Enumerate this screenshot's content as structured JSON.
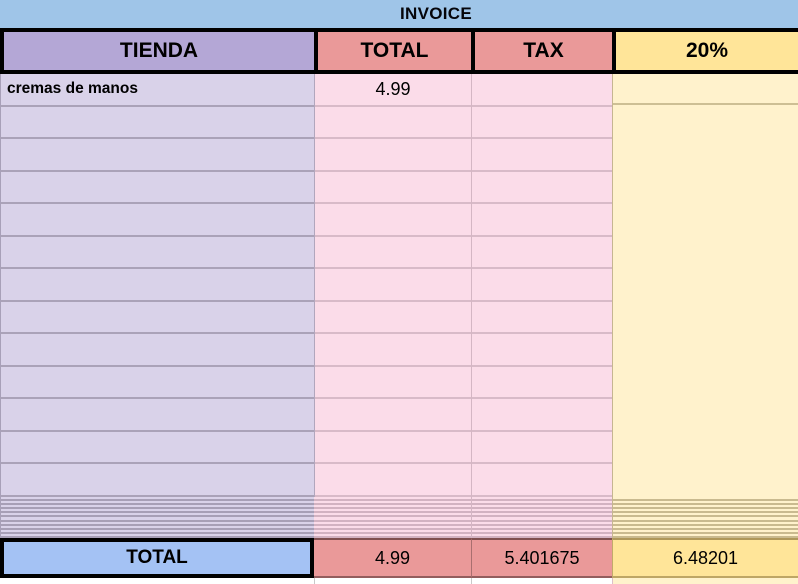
{
  "title": {
    "text": "INVOICE"
  },
  "header": {
    "columns": [
      {
        "label": "TIENDA"
      },
      {
        "label": "TOTAL"
      },
      {
        "label": "TAX"
      },
      {
        "label": "20%"
      }
    ]
  },
  "rows": [
    {
      "tienda": "cremas de manos",
      "total": "4.99",
      "tax": "",
      "pct": ""
    }
  ],
  "empty_row_count": 12,
  "compressed_row_count": 10,
  "footer": {
    "label": "TOTAL",
    "total": "4.99",
    "tax": "5.401675",
    "pct": "6.48201"
  },
  "colors": {
    "title_bar": "#9fc5e8",
    "header_tienda": "#b4a7d6",
    "header_total": "#ea9999",
    "header_tax": "#ea9999",
    "header_pct": "#ffe599",
    "cell_tienda": "#d9d2e9",
    "cell_money": "#fbdce9",
    "cell_pct": "#fff2cc",
    "footer_label_bg": "#a4c2f4",
    "footer_money_bg": "#ea9999",
    "footer_pct_bg": "#ffe599",
    "border_strong": "#000000"
  }
}
